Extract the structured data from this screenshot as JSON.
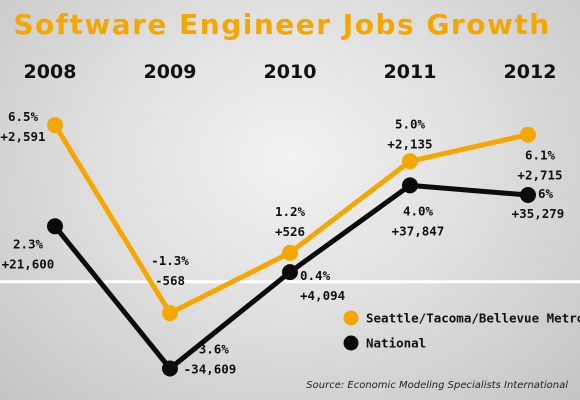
{
  "chart_data": {
    "type": "line",
    "title": "Software Engineer Jobs Growth",
    "categories": [
      "2008",
      "2009",
      "2010",
      "2011",
      "2012"
    ],
    "ylim": [
      -4.2,
      7.5
    ],
    "zero_line": true,
    "legend_position": "bottom-right",
    "source": "Source: Economic Modeling Specialists International",
    "colors": {
      "title": "#f5a700",
      "metro": "#f5a700",
      "national": "#0b0b0b",
      "zero_line": "#ffffff",
      "text": "#111111"
    },
    "series": [
      {
        "name": "Seattle/Tacoma/Bellevue Metro Area",
        "values": [
          6.5,
          -1.3,
          1.2,
          5.0,
          6.1
        ],
        "pct_labels": [
          "6.5%",
          "-1.3%",
          "1.2%",
          "5.0%",
          "6.1%"
        ],
        "count_labels": [
          "+2,591",
          "-568",
          "+526",
          "+2,135",
          "+2,715"
        ]
      },
      {
        "name": "National",
        "values": [
          2.3,
          -3.6,
          0.4,
          4.0,
          3.6
        ],
        "pct_labels": [
          "2.3%",
          "-3.6%",
          "0.4%",
          "4.0%",
          "3.6%"
        ],
        "count_labels": [
          "+21,600",
          "-34,609",
          "+4,094",
          "+37,847",
          "+35,279"
        ]
      }
    ]
  }
}
